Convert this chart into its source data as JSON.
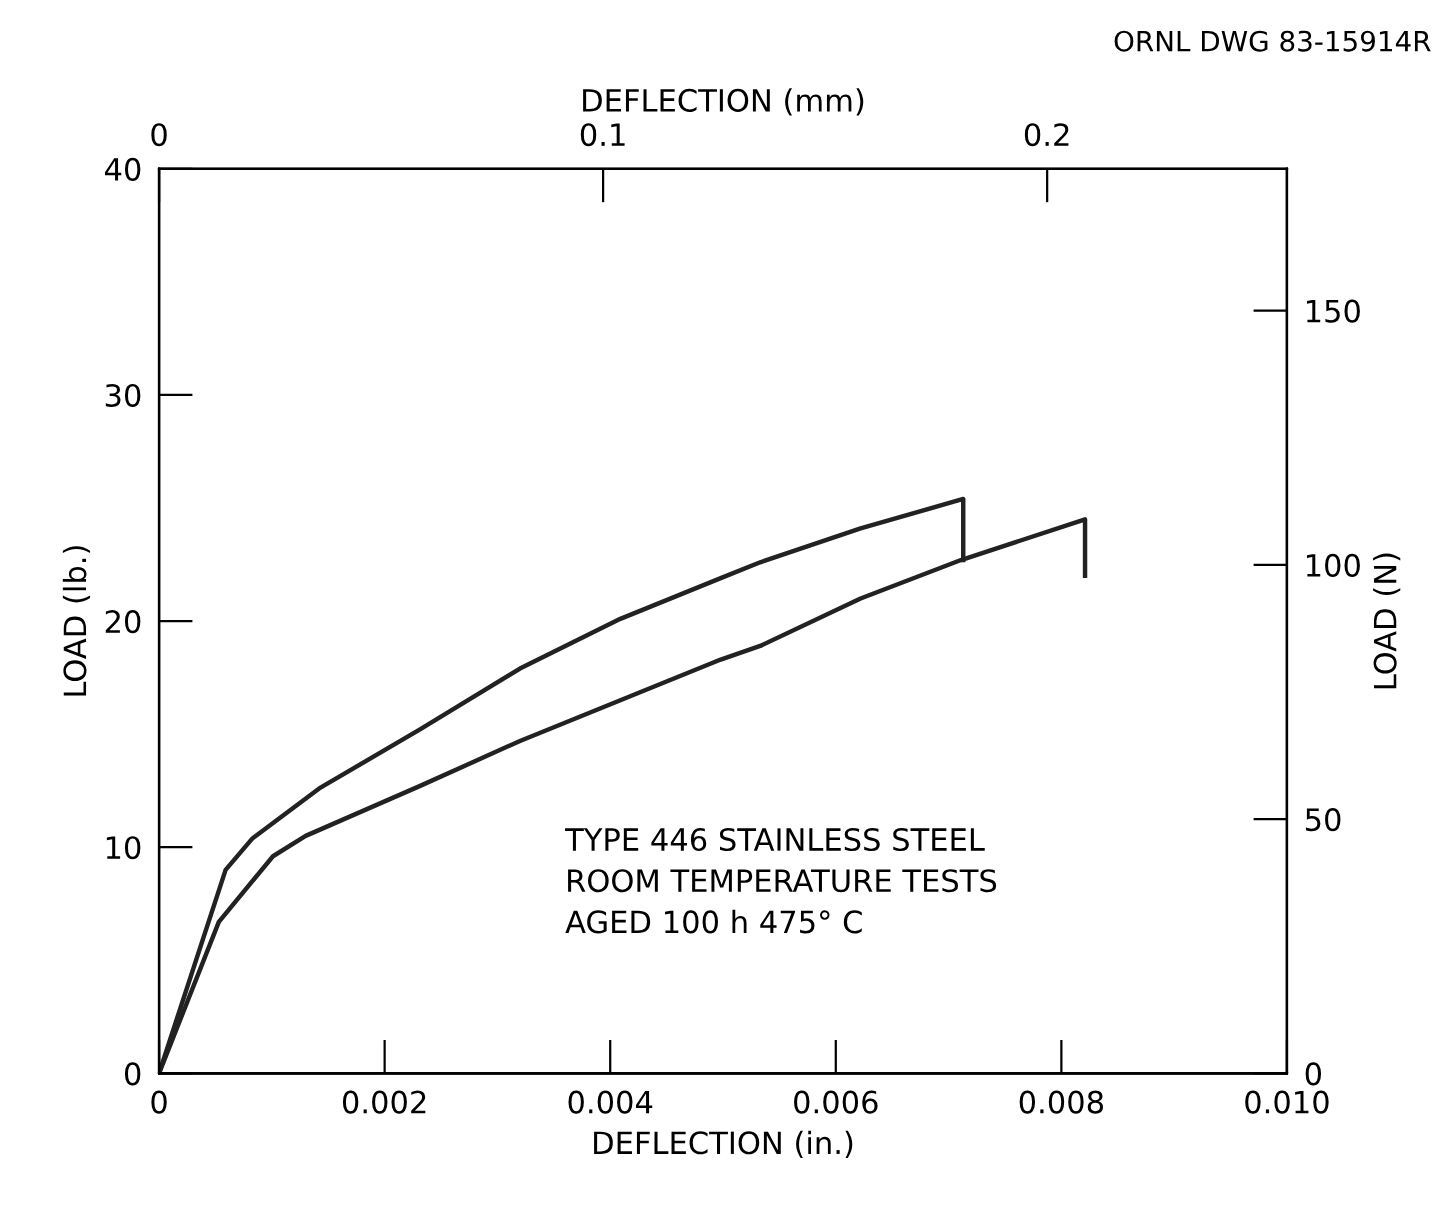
{
  "chart_data": {
    "type": "line",
    "xlabel": "DEFLECTION (in.)",
    "x2label": "DEFLECTION (mm)",
    "ylabel": "LOAD (lb.)",
    "y2label": "LOAD (N)",
    "xlim": [
      0,
      0.01
    ],
    "xticks": [
      0,
      {
        "value": 0.002,
        "label": "0.002"
      },
      {
        "value": 0.004,
        "label": "0.004"
      },
      {
        "value": 0.006,
        "label": "0.006"
      },
      {
        "value": 0.008,
        "label": "0.008"
      },
      {
        "value": 0.01,
        "label": "0.010"
      }
    ],
    "x2lim": [
      0,
      0.254
    ],
    "x2ticks": [
      0,
      0.1,
      0.2
    ],
    "ylim": [
      0,
      40
    ],
    "yticks": [
      0,
      10,
      20,
      30,
      40
    ],
    "y2lim": [
      0,
      177.9
    ],
    "y2ticks": [
      0,
      50,
      100,
      150
    ],
    "grid": false,
    "legend": false,
    "marker": "none",
    "line_style": "solid",
    "series": [
      {
        "color": "#222222",
        "x": [
          0,
          0.00059,
          0.00083,
          0.00142,
          0.00231,
          0.0032,
          0.00409,
          0.00498,
          0.00533,
          0.00622,
          0.00713,
          0.00713
        ],
        "values": [
          0,
          9.0,
          10.4,
          12.6,
          15.2,
          17.9,
          20.1,
          21.9,
          22.6,
          24.1,
          25.4,
          22.7
        ]
      },
      {
        "color": "#222222",
        "x": [
          0,
          0.00053,
          0.00101,
          0.0013,
          0.00231,
          0.0032,
          0.00409,
          0.00498,
          0.00533,
          0.00622,
          0.00711,
          0.00821,
          0.00821
        ],
        "values": [
          0,
          6.7,
          9.6,
          10.5,
          12.7,
          14.7,
          16.5,
          18.3,
          18.9,
          21.0,
          22.7,
          24.5,
          22.0
        ]
      }
    ],
    "annotations": [
      "TYPE 446 STAINLESS STEEL\nROOM TEMPERATURE TESTS\nAGED 100 h 475° C",
      "ORNL DWG 83-15914R"
    ]
  }
}
